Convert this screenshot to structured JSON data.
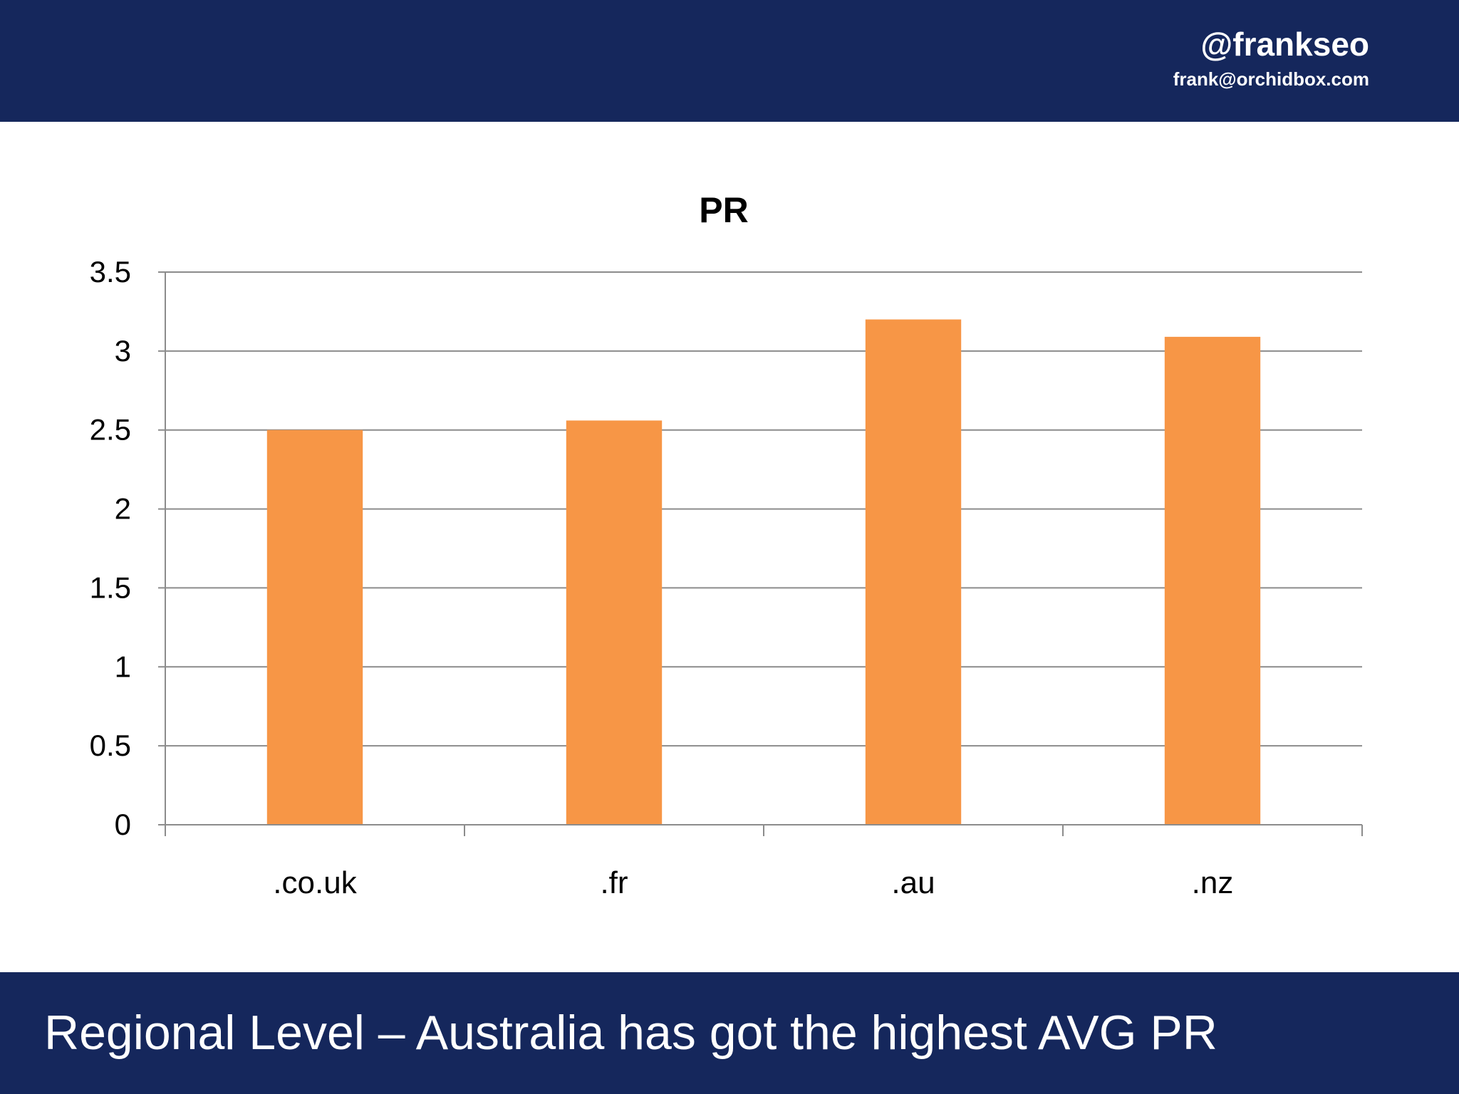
{
  "header": {
    "handle": "@frankseo",
    "email": "frank@orchidbox.com"
  },
  "footer": {
    "title": "Regional Level – Australia has got the highest AVG PR"
  },
  "colors": {
    "bar_background": "#15275c",
    "bar_fill": "#f79646",
    "gridline": "#8c8c8c"
  },
  "chart_data": {
    "type": "bar",
    "title": "PR",
    "categories": [
      ".co.uk",
      ".fr",
      ".au",
      ".nz"
    ],
    "values": [
      2.5,
      2.56,
      3.2,
      3.09
    ],
    "ylim": [
      0,
      3.5
    ],
    "yticks": [
      "0",
      "0.5",
      "1",
      "1.5",
      "2",
      "2.5",
      "3",
      "3.5"
    ],
    "xlabel": "",
    "ylabel": "",
    "grid": true,
    "legend": "none"
  }
}
